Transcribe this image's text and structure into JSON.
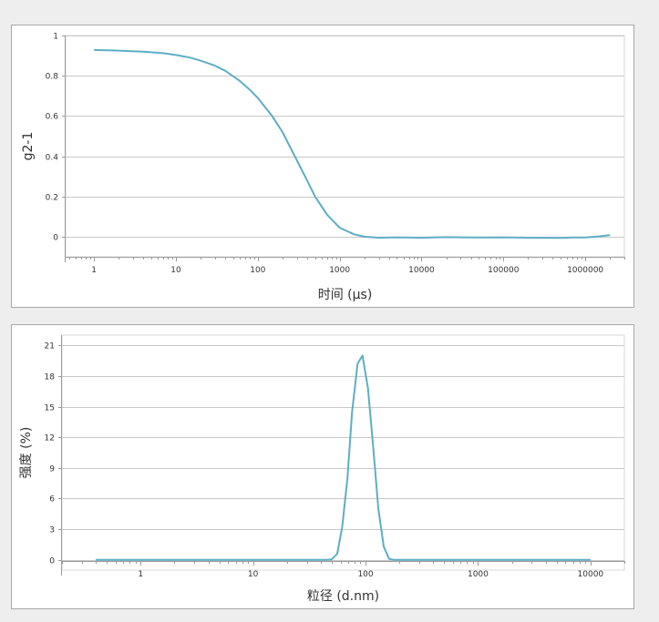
{
  "chart_data": [
    {
      "type": "line",
      "title": "",
      "xlabel": "时间 (μs)",
      "ylabel": "g2-1",
      "xscale": "log",
      "xlim": [
        0.45,
        3000000
      ],
      "ylim": [
        -0.1,
        1
      ],
      "x_ticks": [
        1,
        10,
        100,
        1000,
        10000,
        100000,
        1000000
      ],
      "x_tick_labels": [
        "1",
        "10",
        "100",
        "1000",
        "10000",
        "100000",
        "1000000"
      ],
      "y_ticks": [
        0,
        0.2,
        0.4,
        0.6,
        0.8,
        1
      ],
      "y_tick_labels": [
        "0",
        "0.2",
        "0.4",
        "0.6",
        "0.8",
        "1"
      ],
      "grid": true,
      "color": "#5eaec4",
      "series": [
        {
          "x": [
            1,
            2,
            4,
            7,
            10,
            15,
            20,
            30,
            40,
            60,
            80,
            100,
            150,
            200,
            300,
            400,
            500,
            700,
            1000,
            1500,
            2000,
            3000,
            5000,
            10000,
            20000,
            50000,
            100000,
            200000,
            500000,
            700000,
            1000000,
            1500000,
            2000000
          ],
          "y": [
            0.928,
            0.925,
            0.92,
            0.912,
            0.903,
            0.89,
            0.875,
            0.85,
            0.825,
            0.775,
            0.73,
            0.69,
            0.6,
            0.52,
            0.38,
            0.28,
            0.2,
            0.11,
            0.045,
            0.012,
            0.0,
            -0.005,
            -0.003,
            -0.005,
            -0.002,
            -0.004,
            -0.003,
            -0.005,
            -0.006,
            -0.004,
            -0.004,
            0.002,
            0.008
          ]
        }
      ]
    },
    {
      "type": "line",
      "title": "",
      "xlabel": "粒径 (d.nm)",
      "ylabel": "强度 (%)",
      "xscale": "log",
      "xlim": [
        0.2,
        20000
      ],
      "ylim": [
        -1,
        22
      ],
      "x_ticks": [
        1,
        10,
        100,
        1000,
        10000
      ],
      "x_tick_labels": [
        "1",
        "10",
        "100",
        "1000",
        "10000"
      ],
      "y_ticks": [
        0,
        3,
        6,
        9,
        12,
        15,
        18,
        21
      ],
      "y_tick_labels": [
        "0",
        "3",
        "6",
        "9",
        "12",
        "15",
        "18",
        "21"
      ],
      "grid": true,
      "color": "#5eaec4",
      "series": [
        {
          "x": [
            0.4,
            1,
            10,
            45,
            50,
            56,
            62,
            69,
            76,
            85,
            94,
            105,
            117,
            130,
            145,
            162,
            180,
            200,
            230,
            300,
            1000,
            10000
          ],
          "y": [
            0,
            0,
            0,
            0,
            0.05,
            0.6,
            3.2,
            8,
            14.5,
            19.2,
            20,
            16.8,
            11,
            5,
            1.3,
            0.1,
            0,
            0,
            0,
            0,
            0,
            0
          ]
        }
      ]
    }
  ]
}
